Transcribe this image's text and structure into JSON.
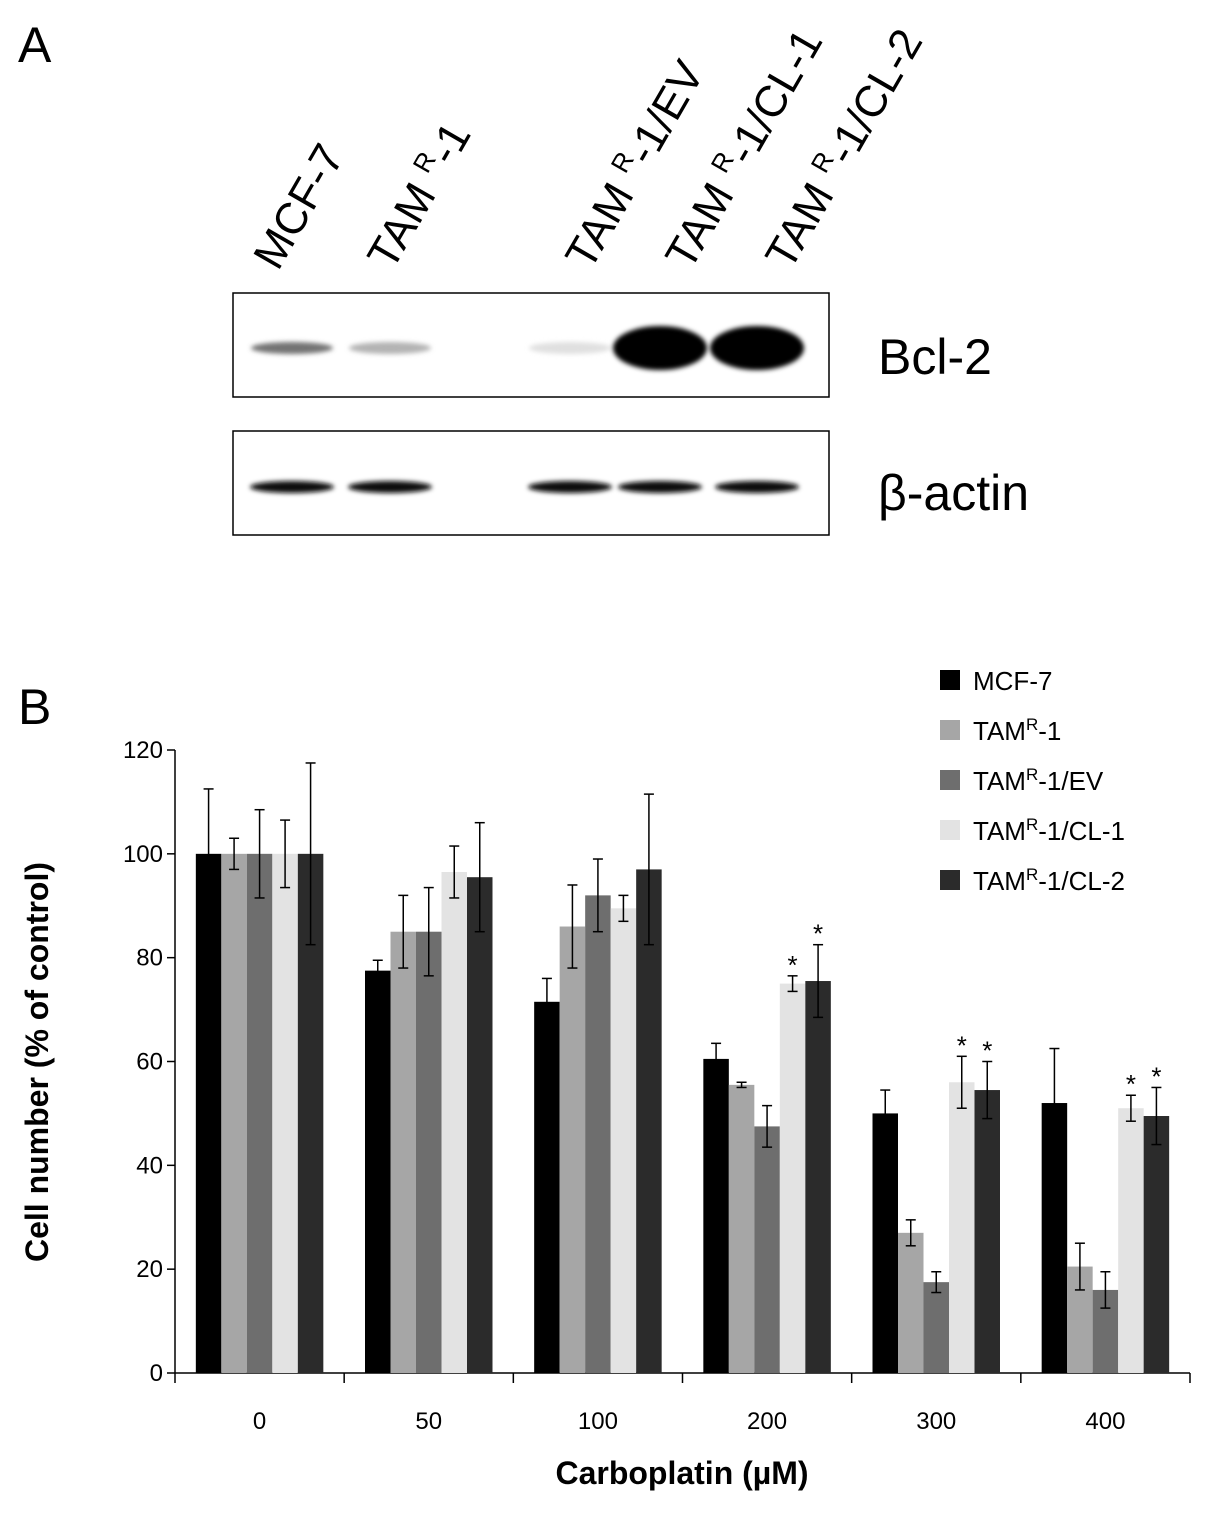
{
  "panel_a": {
    "letter": "A",
    "lanes": [
      {
        "base": "MCF-7",
        "sup": "",
        "rest": ""
      },
      {
        "base": "TAM ",
        "sup": "R",
        "rest": "-1"
      },
      {
        "base": "TAM ",
        "sup": "R",
        "rest": "-1/EV"
      },
      {
        "base": "TAM ",
        "sup": "R",
        "rest": "-1/CL-1"
      },
      {
        "base": "TAM ",
        "sup": "R",
        "rest": "-1/CL-2"
      }
    ],
    "blots": [
      {
        "label": "Bcl-2",
        "band_intensity": [
          0.55,
          0.3,
          0.12,
          1.0,
          1.0
        ]
      },
      {
        "label": "β-actin",
        "band_intensity": [
          0.95,
          0.95,
          0.95,
          0.95,
          0.95
        ]
      }
    ]
  },
  "panel_b": {
    "letter": "B",
    "colors": [
      "#000000",
      "#a6a6a6",
      "#6e6e6e",
      "#e3e3e3",
      "#2b2b2b"
    ]
  },
  "chart_data": {
    "type": "bar",
    "xlabel": "Carboplatin  (µM)",
    "ylabel": "Cell number  (% of control)",
    "ylim": [
      0,
      120
    ],
    "yticks": [
      0,
      20,
      40,
      60,
      80,
      100,
      120
    ],
    "categories": [
      "0",
      "50",
      "100",
      "200",
      "300",
      "400"
    ],
    "legend_position": "top-right",
    "series": [
      {
        "name_base": "MCF-7",
        "name_sup": "",
        "name_rest": "",
        "values": [
          100,
          77.5,
          71.5,
          60.5,
          50,
          52
        ],
        "errors": [
          12.5,
          2,
          4.5,
          3,
          4.5,
          10.5
        ],
        "significant": [
          false,
          false,
          false,
          false,
          false,
          false
        ]
      },
      {
        "name_base": "TAM",
        "name_sup": "R",
        "name_rest": "-1",
        "values": [
          100,
          85,
          86,
          55.5,
          27,
          20.5
        ],
        "errors": [
          3,
          7,
          8,
          0.5,
          2.5,
          4.5
        ],
        "significant": [
          false,
          false,
          false,
          false,
          false,
          false
        ]
      },
      {
        "name_base": "TAM",
        "name_sup": "R",
        "name_rest": "-1/EV",
        "values": [
          100,
          85,
          92,
          47.5,
          17.5,
          16
        ],
        "errors": [
          8.5,
          8.5,
          7,
          4,
          2,
          3.5
        ],
        "significant": [
          false,
          false,
          false,
          false,
          false,
          false
        ]
      },
      {
        "name_base": "TAM",
        "name_sup": "R",
        "name_rest": "-1/CL-1",
        "values": [
          100,
          96.5,
          89.5,
          75,
          56,
          51
        ],
        "errors": [
          6.5,
          5,
          2.5,
          1.5,
          5,
          2.5
        ],
        "significant": [
          false,
          false,
          false,
          true,
          true,
          true
        ]
      },
      {
        "name_base": "TAM",
        "name_sup": "R",
        "name_rest": "-1/CL-2",
        "values": [
          100,
          95.5,
          97,
          75.5,
          54.5,
          49.5
        ],
        "errors": [
          17.5,
          10.5,
          14.5,
          7,
          5.5,
          5.5
        ],
        "significant": [
          false,
          false,
          false,
          true,
          true,
          true
        ]
      }
    ],
    "significance_marker": "*"
  }
}
